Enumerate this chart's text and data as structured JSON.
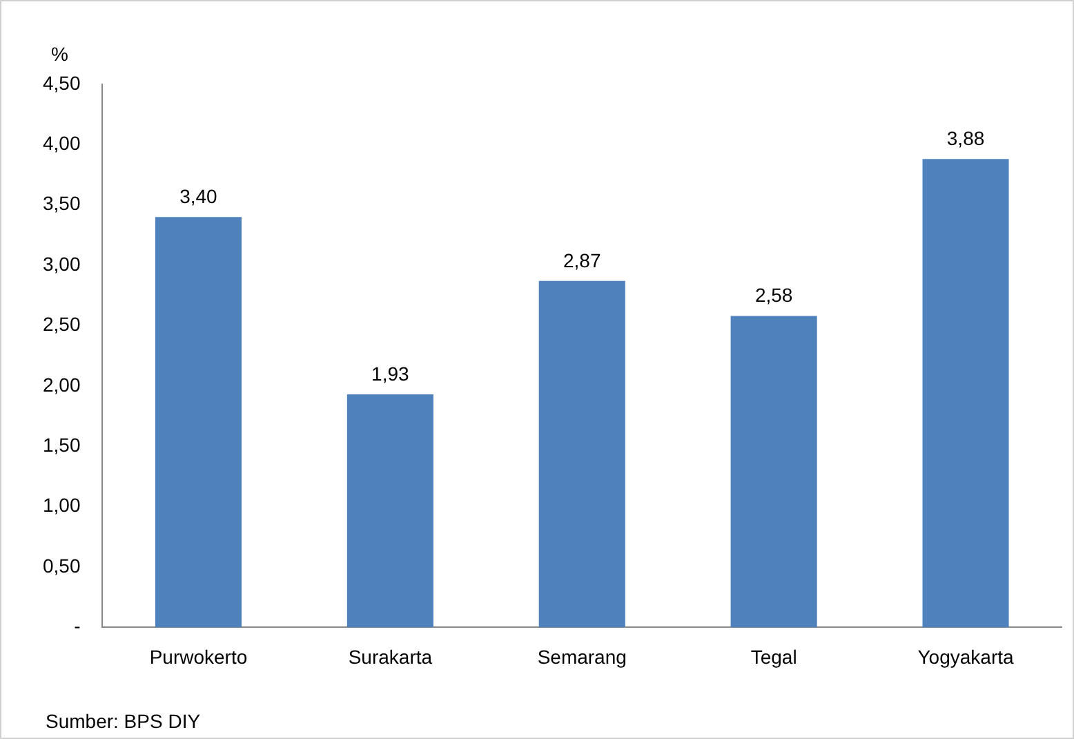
{
  "chart_data": {
    "type": "bar",
    "ylabel": "%",
    "categories": [
      "Purwokerto",
      "Surakarta",
      "Semarang",
      "Tegal",
      "Yogyakarta"
    ],
    "values": [
      3.4,
      1.93,
      2.87,
      2.58,
      3.88
    ],
    "value_labels": [
      "3,40",
      "1,93",
      "2,87",
      "2,58",
      "3,88"
    ],
    "color": "#4f81bd",
    "ylim": [
      0,
      4.5
    ],
    "yticks": [
      {
        "value": 0,
        "label": "-"
      },
      {
        "value": 0.5,
        "label": "0,50"
      },
      {
        "value": 1,
        "label": "1,00"
      },
      {
        "value": 1.5,
        "label": "1,50"
      },
      {
        "value": 2,
        "label": "2,00"
      },
      {
        "value": 2.5,
        "label": "2,50"
      },
      {
        "value": 3,
        "label": "3,00"
      },
      {
        "value": 3.5,
        "label": "3,50"
      },
      {
        "value": 4,
        "label": "4,00"
      },
      {
        "value": 4.5,
        "label": "4,50"
      }
    ],
    "grid": false,
    "legend": false,
    "annotations": [
      "Sumber: BPS DIY"
    ]
  }
}
